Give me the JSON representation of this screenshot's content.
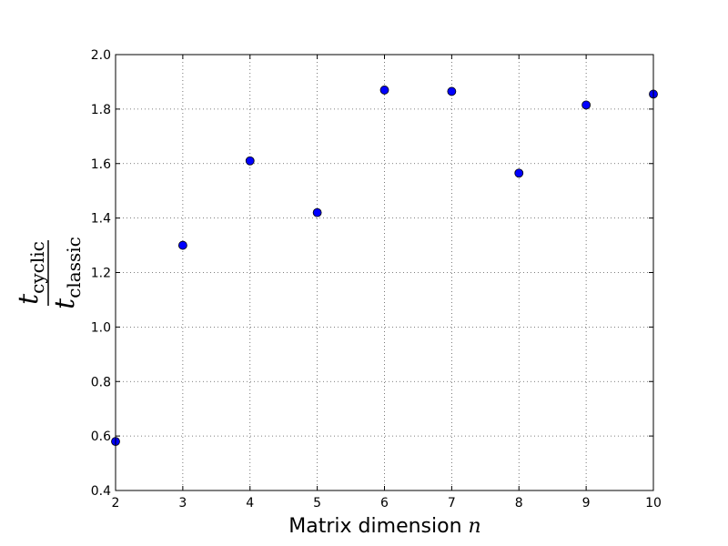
{
  "chart_data": {
    "type": "scatter",
    "xlabel_text": "Matrix dimension ",
    "xlabel_var": "n",
    "ylabel": {
      "numerator_var": "t",
      "numerator_sub": "cyclic",
      "denominator_var": "t",
      "denominator_sub": "classic"
    },
    "xlim": [
      2,
      10
    ],
    "ylim": [
      0.4,
      2.0
    ],
    "x_ticks": [
      2,
      3,
      4,
      5,
      6,
      7,
      8,
      9,
      10
    ],
    "y_ticks": [
      0.4,
      0.6,
      0.8,
      1.0,
      1.2,
      1.4,
      1.6,
      1.8,
      2.0
    ],
    "x_tick_labels": [
      "2",
      "3",
      "4",
      "5",
      "6",
      "7",
      "8",
      "9",
      "10"
    ],
    "y_tick_labels": [
      "0.4",
      "0.6",
      "0.8",
      "1.0",
      "1.2",
      "1.4",
      "1.6",
      "1.8",
      "2.0"
    ],
    "grid": true,
    "series": [
      {
        "x": [
          2,
          3,
          4,
          5,
          6,
          7,
          8,
          9,
          10
        ],
        "y": [
          0.58,
          1.3,
          1.61,
          1.42,
          1.87,
          1.865,
          1.565,
          1.815,
          1.855
        ]
      }
    ],
    "marker_color": "#0000ff",
    "marker_edge": "#000000"
  }
}
